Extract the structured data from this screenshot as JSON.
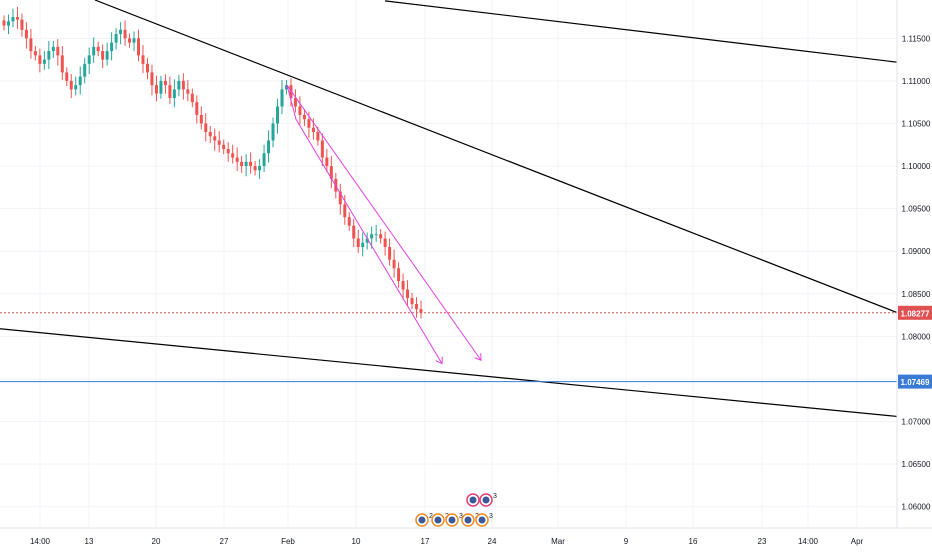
{
  "chart_data": {
    "type": "candlestick",
    "title": "",
    "xlabel": "",
    "ylabel": "",
    "ylim": [
      1.0575,
      1.1195
    ],
    "grid": true,
    "x_tick_labels": [
      "14:00",
      "13",
      "20",
      "27",
      "Feb",
      "10",
      "17",
      "24",
      "Mar",
      "9",
      "16",
      "23",
      "14:00",
      "Apr"
    ],
    "y_tick_labels": [
      "1.06000",
      "1.06500",
      "1.07000",
      "1.07500",
      "1.08000",
      "1.08500",
      "1.09000",
      "1.09500",
      "1.10000",
      "1.10500",
      "1.11000",
      "1.11500"
    ],
    "y_tick_values": [
      1.06,
      1.065,
      1.07,
      1.075,
      1.08,
      1.085,
      1.09,
      1.095,
      1.1,
      1.105,
      1.11,
      1.115
    ],
    "price_markers": [
      {
        "label": "1.08277",
        "value": 1.08277,
        "color": "#e05252"
      },
      {
        "label": "1.07469",
        "value": 1.07469,
        "color": "#3a7bd5"
      }
    ],
    "ohlc_close_path": [
      1.1165,
      1.117,
      1.1175,
      1.1172,
      1.116,
      1.115,
      1.1135,
      1.113,
      1.112,
      1.1125,
      1.1135,
      1.114,
      1.113,
      1.111,
      1.11,
      1.109,
      1.1095,
      1.1105,
      1.112,
      1.113,
      1.114,
      1.1135,
      1.1125,
      1.1135,
      1.1145,
      1.1155,
      1.116,
      1.115,
      1.1145,
      1.115,
      1.113,
      1.112,
      1.111,
      1.1095,
      1.1085,
      1.11,
      1.1095,
      1.108,
      1.109,
      1.11,
      1.109,
      1.1085,
      1.1075,
      1.106,
      1.105,
      1.104,
      1.1035,
      1.103,
      1.1025,
      1.102,
      1.1015,
      1.101,
      1.1005,
      1.1,
      1.1005,
      1.1,
      1.0995,
      1.1,
      1.1015,
      1.103,
      1.105,
      1.107,
      1.109,
      1.1095,
      1.108,
      1.107,
      1.106,
      1.1055,
      1.1045,
      1.104,
      1.103,
      1.101,
      1.1,
      1.0985,
      1.097,
      1.0955,
      1.094,
      1.093,
      1.0915,
      1.0905,
      1.091,
      1.0915,
      1.092,
      1.092,
      1.0915,
      1.0905,
      1.089,
      1.088,
      1.0865,
      1.0855,
      1.0845,
      1.0838,
      1.0832,
      1.0828
    ],
    "trend_lines": [
      {
        "name": "upper-descending",
        "color": "#000000",
        "from": {
          "x_label": "13",
          "y": 1.1195
        },
        "to": {
          "x_label": "Apr",
          "y": 1.0828
        }
      },
      {
        "name": "lower-descending",
        "color": "#000000",
        "from": {
          "x_label": "14:00",
          "y": 1.0809
        },
        "to": {
          "x_label": "Apr",
          "y": 1.0706
        }
      },
      {
        "name": "top-right-line",
        "color": "#000000",
        "from": {
          "x_label": "Feb",
          "y": 1.1194
        },
        "to": {
          "x_label": "Apr",
          "y": 1.1122
        }
      }
    ],
    "channel": {
      "color": "#e040e0",
      "upper": {
        "from": 1.1095,
        "to": 1.0772
      },
      "lower": {
        "from": 1.1055,
        "to": 1.0768
      }
    }
  },
  "colors": {
    "up": "#26a69a",
    "down": "#ef5350",
    "grid": "#f0f3fa",
    "axis_text": "#131722",
    "background": "#ffffff"
  },
  "events": {
    "labels": [
      "2",
      "2",
      "3",
      "2",
      "3",
      "3"
    ]
  }
}
